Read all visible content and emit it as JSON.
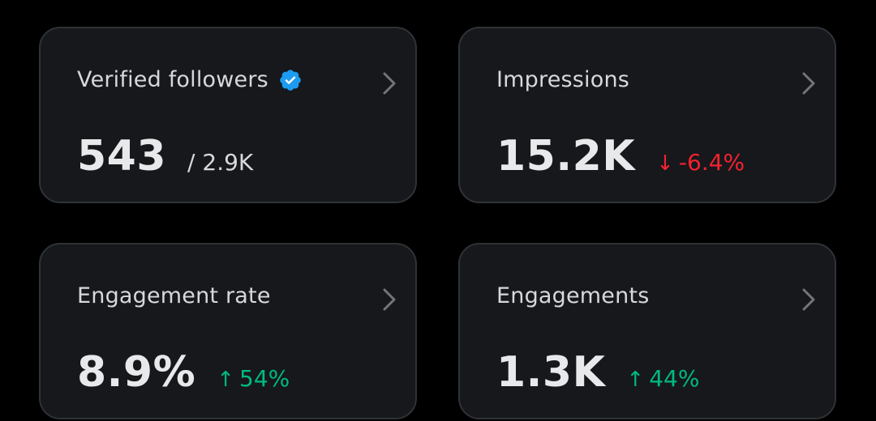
{
  "colors": {
    "background": "#000000",
    "card": "#16181c",
    "border": "#2f3336",
    "verified_blue": "#1d9bf0",
    "negative": "#f4212e",
    "positive": "#00ba7c"
  },
  "cards": [
    {
      "title": "Verified followers",
      "title_icon": "verified-badge-icon",
      "value": "543",
      "secondary": "/ 2.9K",
      "chevron_icon": "chevron-right-icon"
    },
    {
      "title": "Impressions",
      "value": "15.2K",
      "delta_arrow": "↓",
      "delta_icon": "arrow-down-icon",
      "delta": "-6.4%",
      "chevron_icon": "chevron-right-icon"
    },
    {
      "title": "Engagement rate",
      "value": "8.9%",
      "delta_arrow": "↑",
      "delta_icon": "arrow-up-icon",
      "delta": "54%",
      "chevron_icon": "chevron-right-icon"
    },
    {
      "title": "Engagements",
      "value": "1.3K",
      "delta_arrow": "↑",
      "delta_icon": "arrow-up-icon",
      "delta": "44%",
      "chevron_icon": "chevron-right-icon"
    }
  ]
}
